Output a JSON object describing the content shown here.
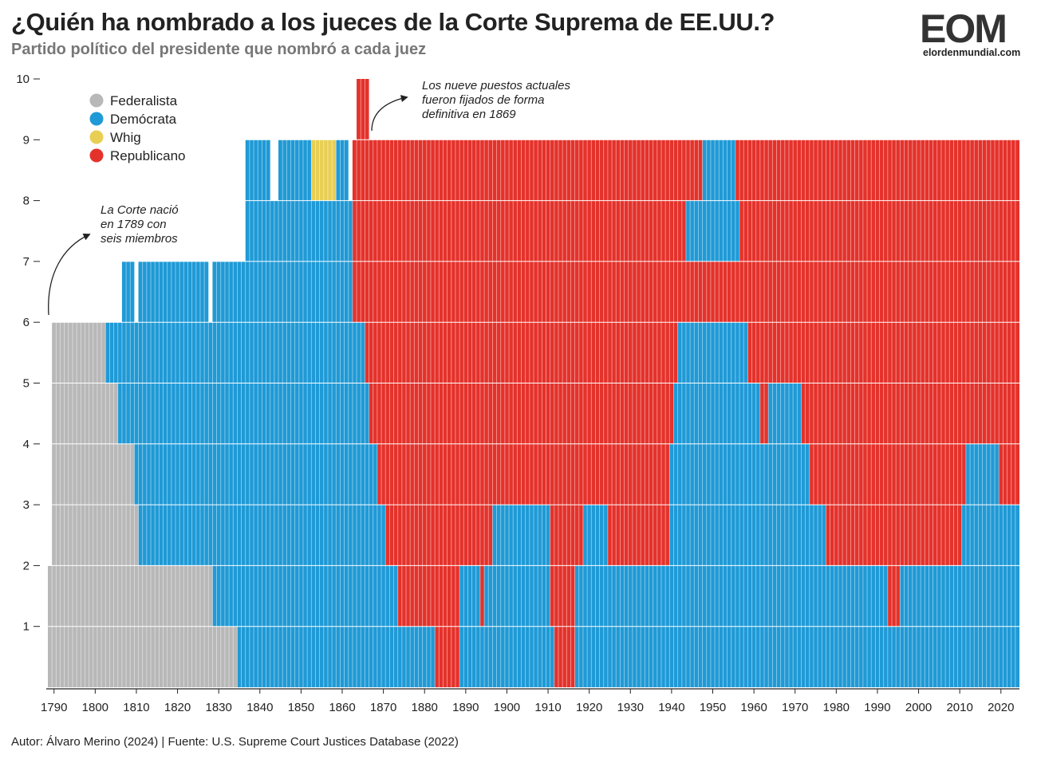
{
  "header": {
    "title": "¿Quién ha nombrado a los jueces de la Corte Suprema de EE.UU.?",
    "subtitle": "Partido político del presidente que nombró a cada juez"
  },
  "logo": {
    "mark": "EOM",
    "url": "elordenmundial.com"
  },
  "footer": {
    "credit": "Autor: Álvaro Merino (2024) | Fuente: U.S. Supreme Court Justices Database (2022)"
  },
  "colors": {
    "Federalista": "#b8b8b8",
    "Demócrata": "#1f9ad6",
    "Whig": "#e8cf54",
    "Republicano": "#e4322b"
  },
  "chart_data": {
    "type": "bar",
    "stacked": true,
    "xlim": [
      1789,
      2024
    ],
    "ylim": [
      0,
      10
    ],
    "x_ticks": [
      1790,
      1800,
      1810,
      1820,
      1830,
      1840,
      1850,
      1860,
      1870,
      1880,
      1890,
      1900,
      1910,
      1920,
      1930,
      1940,
      1950,
      1960,
      1970,
      1980,
      1990,
      2000,
      2010,
      2020
    ],
    "y_ticks": [
      1,
      2,
      3,
      4,
      5,
      6,
      7,
      8,
      9,
      10
    ],
    "legend": [
      "Federalista",
      "Demócrata",
      "Whig",
      "Republicano"
    ],
    "legend_position": "top-left",
    "seats": [
      [
        [
          1789,
          1835,
          "Federalista"
        ],
        [
          1835,
          1883,
          "Demócrata"
        ],
        [
          1883,
          1889,
          "Republicano"
        ],
        [
          1889,
          1912,
          "Demócrata"
        ],
        [
          1912,
          1917,
          "Republicano"
        ],
        [
          1917,
          2025,
          "Demócrata"
        ]
      ],
      [
        [
          1789,
          1829,
          "Federalista"
        ],
        [
          1829,
          1874,
          "Demócrata"
        ],
        [
          1874,
          1889,
          "Republicano"
        ],
        [
          1889,
          1894,
          "Demócrata"
        ],
        [
          1894,
          1895,
          "Republicano"
        ],
        [
          1895,
          1911,
          "Demócrata"
        ],
        [
          1911,
          1917,
          "Republicano"
        ],
        [
          1917,
          1993,
          "Demócrata"
        ],
        [
          1993,
          1996,
          "Republicano"
        ],
        [
          1996,
          2025,
          "Demócrata"
        ]
      ],
      [
        [
          1790,
          1811,
          "Federalista"
        ],
        [
          1811,
          1871,
          "Demócrata"
        ],
        [
          1871,
          1897,
          "Republicano"
        ],
        [
          1897,
          1911,
          "Demócrata"
        ],
        [
          1911,
          1919,
          "Republicano"
        ],
        [
          1919,
          1925,
          "Demócrata"
        ],
        [
          1925,
          1940,
          "Republicano"
        ],
        [
          1940,
          1978,
          "Demócrata"
        ],
        [
          1978,
          2011,
          "Republicano"
        ],
        [
          2011,
          2025,
          "Demócrata"
        ]
      ],
      [
        [
          1790,
          1810,
          "Federalista"
        ],
        [
          1810,
          1869,
          "Demócrata"
        ],
        [
          1869,
          1940,
          "Republicano"
        ],
        [
          1940,
          1974,
          "Demócrata"
        ],
        [
          1974,
          2012,
          "Republicano"
        ],
        [
          2012,
          2020,
          "Demócrata"
        ],
        [
          2020,
          2025,
          "Republicano"
        ]
      ],
      [
        [
          1790,
          1806,
          "Federalista"
        ],
        [
          1806,
          1867,
          "Demócrata"
        ],
        [
          1867,
          1941,
          "Republicano"
        ],
        [
          1941,
          1962,
          "Demócrata"
        ],
        [
          1962,
          1964,
          "Republicano"
        ],
        [
          1964,
          1972,
          "Demócrata"
        ],
        [
          1972,
          2025,
          "Republicano"
        ]
      ],
      [
        [
          1790,
          1803,
          "Federalista"
        ],
        [
          1803,
          1866,
          "Demócrata"
        ],
        [
          1866,
          1942,
          "Republicano"
        ],
        [
          1942,
          1959,
          "Demócrata"
        ],
        [
          1959,
          2025,
          "Republicano"
        ]
      ],
      [
        [
          1807,
          1810,
          "Demócrata"
        ],
        [
          1811,
          1828,
          "Demócrata"
        ],
        [
          1829,
          1863,
          "Demócrata"
        ],
        [
          1863,
          1959,
          "Republicano"
        ],
        [
          1959,
          2025,
          "Republicano"
        ]
      ],
      [
        [
          1837,
          1863,
          "Demócrata"
        ],
        [
          1863,
          1944,
          "Republicano"
        ],
        [
          1944,
          1957,
          "Demócrata"
        ],
        [
          1957,
          2025,
          "Republicano"
        ]
      ],
      [
        [
          1837,
          1843,
          "Demócrata"
        ],
        [
          1845,
          1853,
          "Demócrata"
        ],
        [
          1853,
          1859,
          "Whig"
        ],
        [
          1859,
          1862,
          "Demócrata"
        ],
        [
          1863,
          1948,
          "Republicano"
        ],
        [
          1948,
          1956,
          "Demócrata"
        ],
        [
          1956,
          2025,
          "Republicano"
        ]
      ],
      [
        [
          1864,
          1867,
          "Republicano"
        ]
      ]
    ],
    "annotations": [
      {
        "id": "court-born",
        "x": 1789,
        "y": 6,
        "text": [
          "La Corte nació",
          "en 1789 con",
          "seis miembros"
        ]
      },
      {
        "id": "nine-seats",
        "x": 1868,
        "y": 9,
        "text": [
          "Los nueve puestos actuales",
          "fueron fijados de forma",
          "definitiva en 1869"
        ]
      }
    ]
  }
}
